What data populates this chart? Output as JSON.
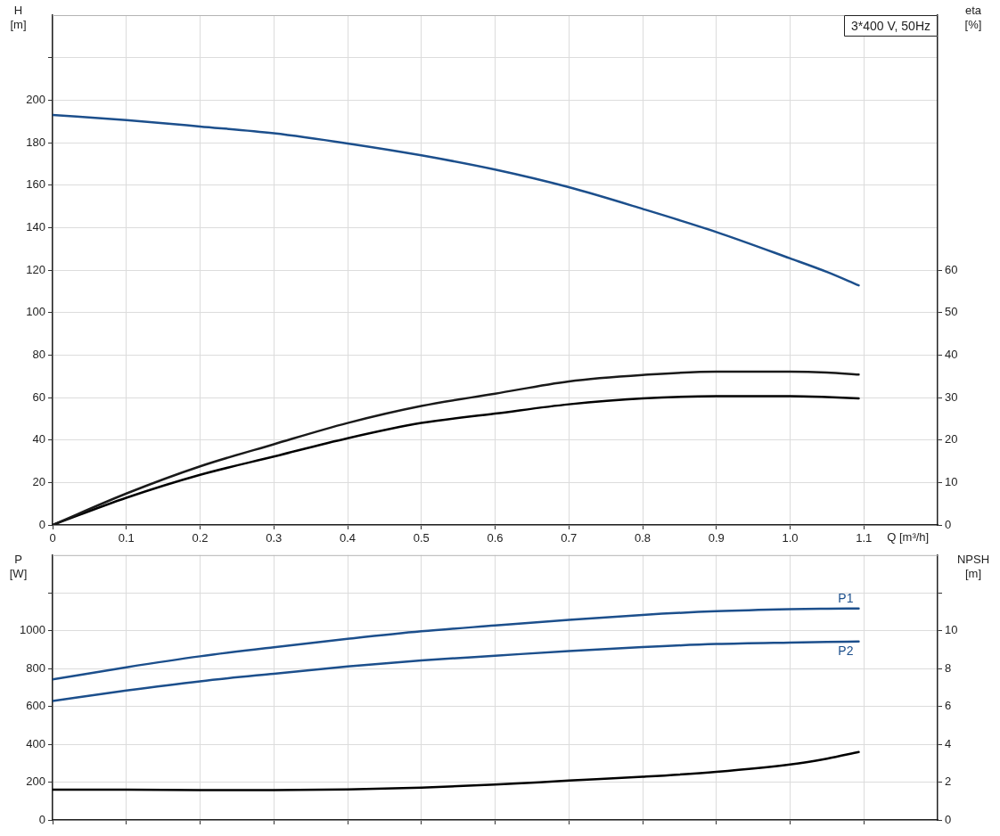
{
  "chart_data": [
    {
      "type": "line",
      "xlabel": "Q [m³/h]",
      "ylabel": "H [m]",
      "y2label": "eta [%]",
      "annotations": [
        "3*400 V, 50Hz"
      ],
      "xlim": [
        0,
        1.2
      ],
      "xticks": [
        0,
        0.1,
        0.2,
        0.3,
        0.4,
        0.5,
        0.6,
        0.7,
        0.8,
        0.9,
        {
          "value": 1,
          "label": "1.0"
        },
        1.1
      ],
      "ylim": [
        0,
        240
      ],
      "yticks": [
        0,
        20,
        40,
        60,
        80,
        100,
        120,
        140,
        160,
        180,
        200,
        {
          "value": 220,
          "label": null
        }
      ],
      "y2lim": [
        0,
        120
      ],
      "y2ticks": [
        0,
        10,
        20,
        30,
        40,
        50,
        60
      ],
      "grid": true,
      "x": [
        0,
        0.1,
        0.2,
        0.3,
        0.4,
        0.5,
        0.6,
        0.7,
        0.8,
        0.9,
        1.0,
        1.05,
        1.093
      ],
      "series": [
        {
          "color": "#1c4f8c",
          "values": [
            193,
            190.6,
            187.6,
            184.4,
            179.6,
            174,
            167.3,
            159,
            148.8,
            137.9,
            125.5,
            119.1,
            112.8
          ]
        },
        {
          "color": "#1a1a1a",
          "axis": "y2",
          "values": [
            0,
            7.4,
            13.8,
            19,
            24,
            28,
            30.9,
            33.8,
            35.3,
            36.1,
            36.1,
            35.9,
            35.4
          ]
        },
        {
          "color": "#000000",
          "axis": "y2",
          "values": [
            0,
            6.4,
            11.8,
            16.1,
            20.4,
            24,
            26.2,
            28.4,
            29.8,
            30.3,
            30.3,
            30.1,
            29.8
          ]
        }
      ]
    },
    {
      "type": "line",
      "ylabel": "P [W]",
      "y2label": "NPSH [m]",
      "tick_labels": "y",
      "xlim": [
        0,
        1.2
      ],
      "xticks": [
        0,
        0.1,
        0.2,
        0.3,
        0.4,
        0.5,
        0.6,
        0.7,
        0.8,
        0.9,
        1,
        1.1
      ],
      "ylim": [
        0,
        1400
      ],
      "yticks": [
        0,
        200,
        400,
        600,
        800,
        1000,
        {
          "value": 1200,
          "label": null
        }
      ],
      "y2lim": [
        0,
        14
      ],
      "y2ticks": [
        0,
        2,
        4,
        6,
        8,
        10,
        {
          "value": 12,
          "label": null
        }
      ],
      "grid": true,
      "x": [
        0,
        0.1,
        0.2,
        0.3,
        0.4,
        0.5,
        0.6,
        0.7,
        0.8,
        0.9,
        1.0,
        1.05,
        1.093
      ],
      "series": [
        {
          "name": "P1",
          "color": "#1c4f8c",
          "values": [
            743,
            807,
            865,
            913,
            957,
            997,
            1028,
            1058,
            1084,
            1103,
            1114,
            1117,
            1118
          ]
        },
        {
          "name": "P2",
          "color": "#1c4f8c",
          "values": [
            629,
            684,
            733,
            773,
            811,
            843,
            868,
            893,
            914,
            930,
            938,
            941,
            943
          ]
        },
        {
          "color": "#000000",
          "axis": "y2",
          "values": [
            1.6,
            1.6,
            1.58,
            1.58,
            1.61,
            1.71,
            1.87,
            2.08,
            2.28,
            2.54,
            2.93,
            3.24,
            3.59
          ]
        }
      ]
    }
  ]
}
